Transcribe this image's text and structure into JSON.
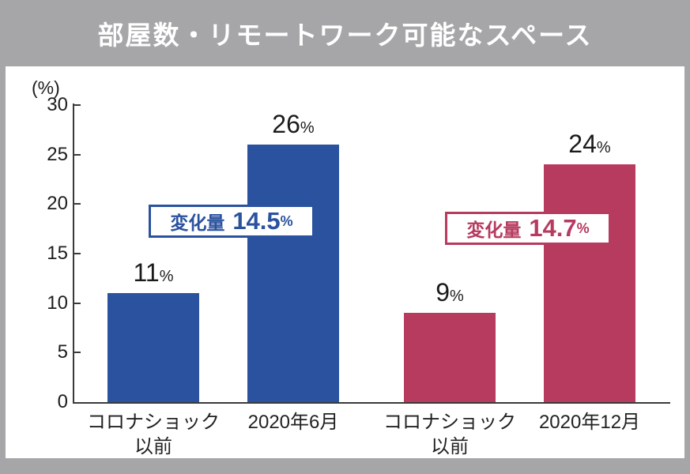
{
  "title": "部屋数・リモートワーク可能なスペース",
  "colors": {
    "background_gray": "#a6a6a8",
    "panel_white": "#ffffff",
    "bar_blue": "#2a529e",
    "bar_red": "#b73a5f",
    "axis": "#3a3a3a",
    "text": "#1d1d1d",
    "title_text": "#ffffff"
  },
  "chart_data": {
    "type": "bar",
    "title": "部屋数・リモートワーク可能なスペース",
    "ylabel": "(%)",
    "ylim": [
      0,
      30
    ],
    "yticks": [
      0,
      5,
      10,
      15,
      20,
      25,
      30
    ],
    "grid": false,
    "categories": [
      [
        "コロナショック",
        "以前"
      ],
      [
        "2020年6月"
      ],
      [
        "コロナショック",
        "以前"
      ],
      [
        "2020年12月"
      ]
    ],
    "values": [
      11,
      26,
      9,
      24
    ],
    "value_suffix": "%",
    "bar_colors": [
      "#2a529e",
      "#2a529e",
      "#b73a5f",
      "#b73a5f"
    ],
    "annotations": [
      {
        "label": "変化量",
        "value": "14.5",
        "suffix": "%",
        "color": "#2a529e"
      },
      {
        "label": "変化量",
        "value": "14.7",
        "suffix": "%",
        "color": "#b73a5f"
      }
    ]
  }
}
